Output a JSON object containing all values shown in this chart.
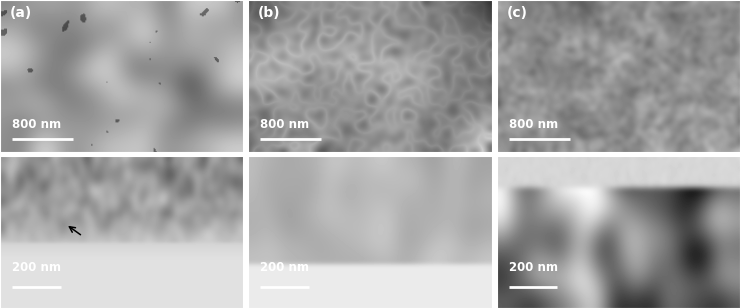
{
  "figsize": [
    7.4,
    3.08
  ],
  "dpi": 100,
  "nrows": 2,
  "ncols": 3,
  "panel_labels_top": [
    "(a)",
    "(b)",
    "(c)"
  ],
  "scale_bar_top": "800 nm",
  "scale_bar_bottom": "200 nm",
  "background": "#ffffff",
  "hspace": 0.02,
  "wspace": 0.02
}
